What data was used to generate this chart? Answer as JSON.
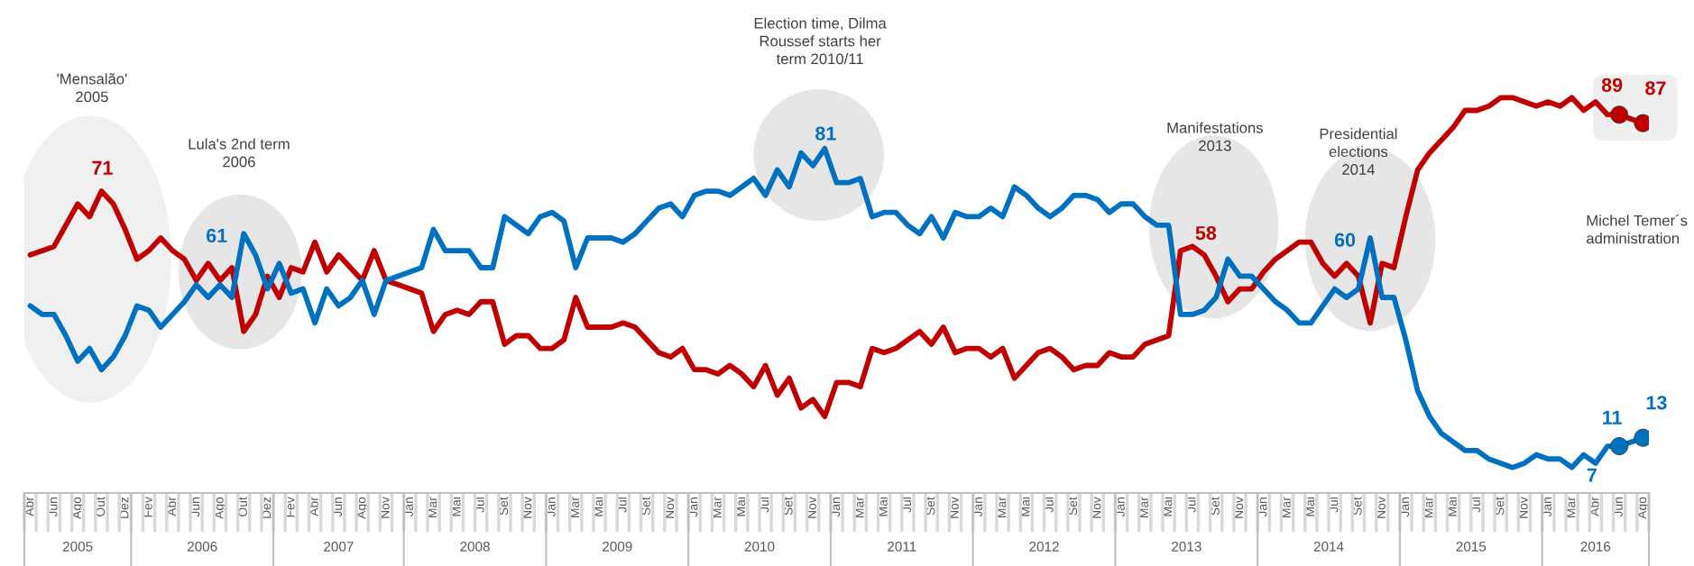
{
  "chart_data": {
    "type": "line",
    "categories": [
      "Abr",
      null,
      "Jun",
      null,
      "Ago",
      null,
      "Out",
      null,
      "Dez",
      null,
      "Fev",
      null,
      "Abr",
      null,
      "Jun",
      null,
      "Ago",
      null,
      "Out",
      null,
      "Dez",
      null,
      "Fev",
      null,
      "Abr",
      null,
      "Jun",
      null,
      "Ago",
      null,
      "Nov",
      null,
      "Jan",
      null,
      "Mar",
      null,
      "Mai",
      null,
      "Jul",
      null,
      "Set",
      null,
      "Nov",
      null,
      "Jan",
      null,
      "Mar",
      null,
      "Mai",
      null,
      "Jul",
      null,
      "Set",
      null,
      "Nov",
      null,
      "Jan",
      null,
      "Mar",
      null,
      "Mai",
      null,
      "Jul",
      null,
      "Set",
      null,
      "Nov",
      null,
      "Jan",
      null,
      "Mar",
      null,
      "Mai",
      null,
      "Jul",
      null,
      "Set",
      null,
      "Nov",
      null,
      "Jan",
      null,
      "Mar",
      null,
      "Mai",
      null,
      "Jul",
      null,
      "Set",
      null,
      "Nov",
      null,
      "Jan",
      null,
      "Mar",
      null,
      "Mai",
      null,
      "Jul",
      null,
      "Set",
      null,
      "Nov",
      null,
      "Jan",
      null,
      "Mar",
      null,
      "Mai",
      null,
      "Jul",
      null,
      "Set",
      null,
      "Nov",
      null,
      "Jan",
      null,
      "Mar",
      null,
      "Mai",
      null,
      "Jul",
      null,
      "Set",
      null,
      "Nov",
      null,
      "Jan",
      null,
      "Mar",
      null,
      "Abr",
      null,
      "Jun",
      null,
      "Ago"
    ],
    "series": [
      {
        "color": "#c00000",
        "values": [
          56,
          57,
          58,
          63,
          68,
          65,
          71,
          68,
          62,
          55,
          57,
          60,
          57,
          55,
          50,
          54,
          50,
          53,
          38,
          42,
          51,
          46,
          53,
          52,
          59,
          52,
          56,
          53,
          50,
          57,
          50,
          49,
          48,
          47,
          38,
          42,
          43,
          42,
          45,
          45,
          35,
          37,
          37,
          34,
          34,
          36,
          46,
          39,
          39,
          39,
          40,
          39,
          36,
          33,
          32,
          34,
          29,
          29,
          28,
          30,
          28,
          25,
          30,
          23,
          27,
          20,
          22,
          18,
          26,
          26,
          25,
          34,
          33,
          34,
          36,
          38,
          35,
          39,
          33,
          34,
          34,
          32,
          34,
          27,
          30,
          33,
          34,
          32,
          29,
          30,
          30,
          33,
          32,
          32,
          35,
          36,
          37,
          57,
          58,
          56,
          51,
          45,
          48,
          48,
          52,
          55,
          57,
          59,
          59,
          54,
          51,
          54,
          51,
          40,
          54,
          53,
          65,
          76,
          80,
          83,
          86,
          90,
          90,
          91,
          93,
          93,
          92,
          91,
          92,
          91,
          93,
          90,
          92,
          89,
          89,
          88,
          87
        ],
        "value_labels": [
          null,
          null,
          null,
          null,
          null,
          null,
          "71",
          null,
          null,
          null,
          null,
          null,
          null,
          null,
          null,
          null,
          null,
          null,
          null,
          null,
          null,
          null,
          null,
          null,
          null,
          null,
          null,
          null,
          null,
          null,
          null,
          null,
          null,
          null,
          null,
          null,
          null,
          null,
          null,
          null,
          null,
          null,
          null,
          null,
          null,
          null,
          null,
          null,
          null,
          null,
          null,
          null,
          null,
          null,
          null,
          null,
          null,
          null,
          null,
          null,
          null,
          null,
          null,
          null,
          null,
          null,
          null,
          null,
          null,
          null,
          null,
          null,
          null,
          null,
          null,
          null,
          null,
          null,
          null,
          null,
          null,
          null,
          null,
          null,
          null,
          null,
          null,
          null,
          null,
          null,
          null,
          null,
          null,
          null,
          null,
          null,
          null,
          null,
          "58",
          null,
          null,
          null,
          null,
          null,
          null,
          null,
          null,
          null,
          null,
          null,
          null,
          null,
          null,
          null,
          null,
          null,
          null,
          null,
          null,
          null,
          null,
          null,
          null,
          null,
          null,
          null,
          null,
          null,
          null,
          null,
          null,
          null,
          null,
          null,
          "89",
          null,
          "87"
        ]
      },
      {
        "color": "#0070c0",
        "values": [
          44,
          42,
          42,
          37,
          31,
          34,
          29,
          32,
          37,
          44,
          43,
          39,
          42,
          45,
          49,
          46,
          49,
          46,
          61,
          56,
          48,
          54,
          47,
          48,
          40,
          48,
          44,
          46,
          50,
          42,
          50,
          51,
          52,
          53,
          62,
          57,
          57,
          57,
          53,
          53,
          65,
          63,
          61,
          65,
          66,
          64,
          53,
          60,
          60,
          60,
          59,
          61,
          64,
          67,
          68,
          65,
          70,
          71,
          71,
          70,
          72,
          74,
          70,
          76,
          72,
          80,
          77,
          81,
          73,
          73,
          74,
          65,
          66,
          66,
          63,
          61,
          65,
          60,
          66,
          65,
          65,
          67,
          65,
          72,
          70,
          67,
          65,
          67,
          70,
          70,
          69,
          66,
          68,
          68,
          65,
          63,
          63,
          42,
          42,
          43,
          46,
          55,
          51,
          51,
          48,
          45,
          43,
          40,
          40,
          44,
          48,
          46,
          48,
          60,
          46,
          46,
          36,
          24,
          18,
          14,
          12,
          10,
          10,
          8,
          7,
          6,
          7,
          9,
          8,
          8,
          6,
          9,
          7,
          11,
          11,
          12,
          13
        ],
        "value_labels": [
          null,
          null,
          null,
          null,
          null,
          null,
          null,
          null,
          null,
          null,
          null,
          null,
          null,
          null,
          null,
          null,
          null,
          null,
          "61",
          null,
          null,
          null,
          null,
          null,
          null,
          null,
          null,
          null,
          null,
          null,
          null,
          null,
          null,
          null,
          null,
          null,
          null,
          null,
          null,
          null,
          null,
          null,
          null,
          null,
          null,
          null,
          null,
          null,
          null,
          null,
          null,
          null,
          null,
          null,
          null,
          null,
          null,
          null,
          null,
          null,
          null,
          null,
          null,
          null,
          null,
          null,
          null,
          "81",
          null,
          null,
          null,
          null,
          null,
          null,
          null,
          null,
          null,
          null,
          null,
          null,
          null,
          null,
          null,
          null,
          null,
          null,
          null,
          null,
          null,
          null,
          null,
          null,
          null,
          null,
          null,
          null,
          null,
          null,
          null,
          null,
          null,
          null,
          null,
          null,
          null,
          null,
          null,
          null,
          null,
          null,
          null,
          null,
          null,
          "60",
          null,
          null,
          null,
          null,
          null,
          null,
          null,
          null,
          null,
          null,
          null,
          null,
          null,
          null,
          null,
          null,
          null,
          null,
          "7",
          null,
          "11",
          null,
          "13"
        ]
      },
      {
        "type": "scatter",
        "marker": "circle",
        "color": "#c00000",
        "values": [
          null,
          null,
          null,
          null,
          null,
          null,
          null,
          null,
          null,
          null,
          null,
          null,
          null,
          null,
          null,
          null,
          null,
          null,
          null,
          null,
          null,
          null,
          null,
          null,
          null,
          null,
          null,
          null,
          null,
          null,
          null,
          null,
          null,
          null,
          null,
          null,
          null,
          null,
          null,
          null,
          null,
          null,
          null,
          null,
          null,
          null,
          null,
          null,
          null,
          null,
          null,
          null,
          null,
          null,
          null,
          null,
          null,
          null,
          null,
          null,
          null,
          null,
          null,
          null,
          null,
          null,
          null,
          null,
          null,
          null,
          null,
          null,
          null,
          null,
          null,
          null,
          null,
          null,
          null,
          null,
          null,
          null,
          null,
          null,
          null,
          null,
          null,
          null,
          null,
          null,
          null,
          null,
          null,
          null,
          null,
          null,
          null,
          null,
          null,
          null,
          null,
          null,
          null,
          null,
          null,
          null,
          null,
          null,
          null,
          null,
          null,
          null,
          null,
          null,
          null,
          null,
          null,
          null,
          null,
          null,
          null,
          null,
          null,
          null,
          null,
          null,
          null,
          null,
          null,
          null,
          null,
          null,
          null,
          null,
          89,
          null,
          87
        ]
      },
      {
        "type": "scatter",
        "marker": "circle",
        "color": "#0070c0",
        "values": [
          null,
          null,
          null,
          null,
          null,
          null,
          null,
          null,
          null,
          null,
          null,
          null,
          null,
          null,
          null,
          null,
          null,
          null,
          null,
          null,
          null,
          null,
          null,
          null,
          null,
          null,
          null,
          null,
          null,
          null,
          null,
          null,
          null,
          null,
          null,
          null,
          null,
          null,
          null,
          null,
          null,
          null,
          null,
          null,
          null,
          null,
          null,
          null,
          null,
          null,
          null,
          null,
          null,
          null,
          null,
          null,
          null,
          null,
          null,
          null,
          null,
          null,
          null,
          null,
          null,
          null,
          null,
          null,
          null,
          null,
          null,
          null,
          null,
          null,
          null,
          null,
          null,
          null,
          null,
          null,
          null,
          null,
          null,
          null,
          null,
          null,
          null,
          null,
          null,
          null,
          null,
          null,
          null,
          null,
          null,
          null,
          null,
          null,
          null,
          null,
          null,
          null,
          null,
          null,
          null,
          null,
          null,
          null,
          null,
          null,
          null,
          null,
          null,
          null,
          null,
          null,
          null,
          null,
          null,
          null,
          null,
          null,
          null,
          null,
          null,
          null,
          null,
          null,
          null,
          null,
          null,
          null,
          null,
          null,
          11,
          null,
          13
        ]
      }
    ],
    "annotations": [
      "'Mensalão'\n2005",
      "Lula's 2nd term\n2006",
      "Election time, Dilma\nRoussef starts her\nterm 2010/11",
      "Manifestations\n2013",
      "Presidential\nelections\n2014",
      "Michel Temer´s\nadministration",
      "2005",
      "2006",
      "2007",
      "2008",
      "2009",
      "2010",
      "2011",
      "2012",
      "2013",
      "2014",
      "2015",
      "2016"
    ]
  }
}
